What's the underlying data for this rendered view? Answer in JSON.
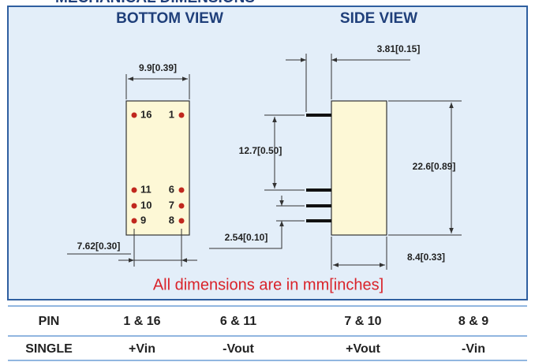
{
  "header": {
    "title": "MECHANICAL DIMENSIONS"
  },
  "views": {
    "bottom": "BOTTOM VIEW",
    "side": "SIDE VIEW"
  },
  "pins": {
    "left": [
      "16",
      "11",
      "10",
      "9"
    ],
    "right": [
      "1",
      "6",
      "7",
      "8"
    ]
  },
  "dimensions": {
    "width": "9.9[0.39]",
    "pin_row_spacing": "7.62[0.30]",
    "pin_length": "3.81[0.15]",
    "pin_span": "12.7[0.50]",
    "pin_pitch": "2.54[0.10]",
    "length": "22.6[0.89]",
    "height": "8.4[0.33]"
  },
  "note": "All dimensions are in mm[inches]",
  "table": {
    "header": [
      "PIN",
      "1 & 16",
      "6 & 11",
      "7 & 10",
      "8 & 9"
    ],
    "rows": [
      [
        "SINGLE",
        "+Vin",
        "-Vout",
        "+Vout",
        "-Vin"
      ]
    ]
  }
}
